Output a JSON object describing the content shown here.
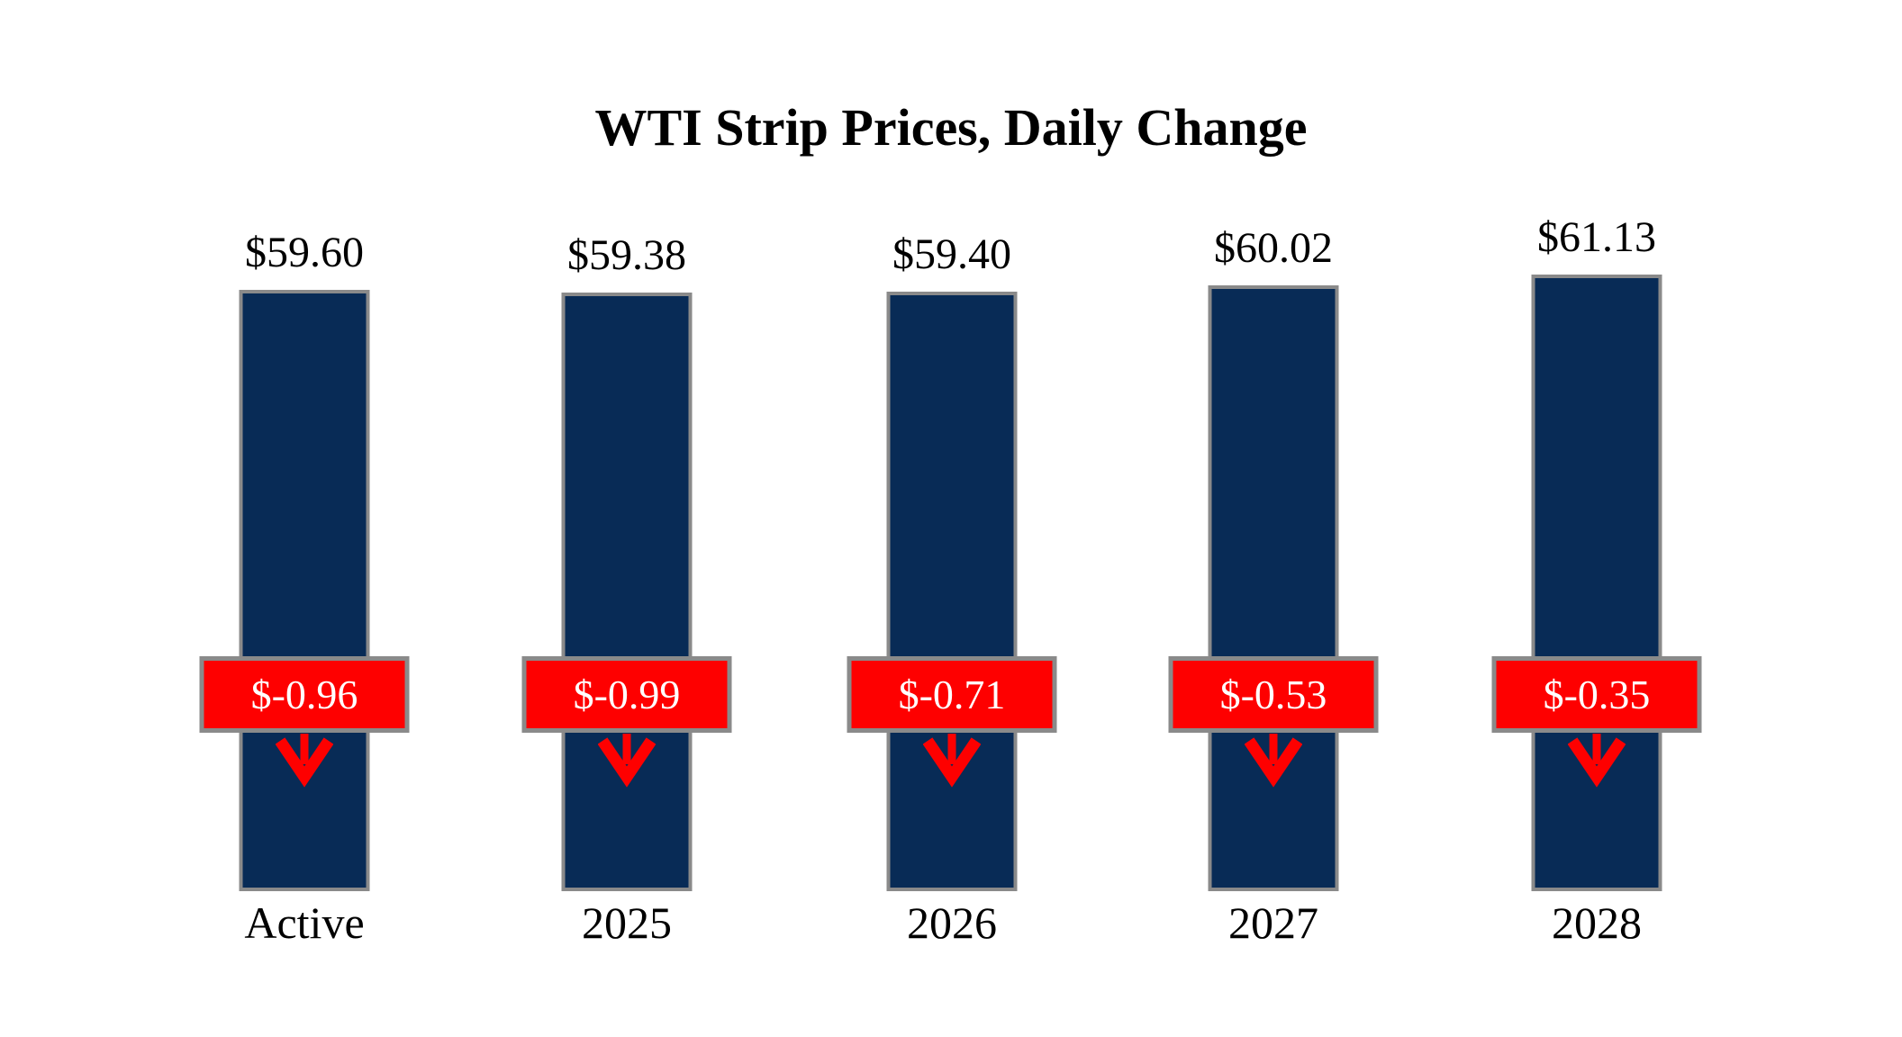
{
  "chart_data": {
    "type": "bar",
    "title": "WTI Strip Prices, Daily Change",
    "categories": [
      "Active",
      "2025",
      "2026",
      "2027",
      "2028"
    ],
    "series": [
      {
        "name": "Strip Price",
        "values": [
          59.6,
          59.38,
          59.4,
          60.02,
          61.13
        ]
      },
      {
        "name": "Daily Change",
        "values": [
          -0.96,
          -0.99,
          -0.71,
          -0.53,
          -0.35
        ]
      }
    ],
    "points": [
      {
        "category": "Active",
        "price": 59.6,
        "price_label": "$59.60",
        "change": -0.96,
        "change_label": "$-0.96"
      },
      {
        "category": "2025",
        "price": 59.38,
        "price_label": "$59.38",
        "change": -0.99,
        "change_label": "$-0.99"
      },
      {
        "category": "2026",
        "price": 59.4,
        "price_label": "$59.40",
        "change": -0.71,
        "change_label": "$-0.71"
      },
      {
        "category": "2027",
        "price": 60.02,
        "price_label": "$60.02",
        "change": -0.53,
        "change_label": "$-0.53"
      },
      {
        "category": "2028",
        "price": 61.13,
        "price_label": "$61.13",
        "change": -0.35,
        "change_label": "$-0.35"
      }
    ],
    "axis": {
      "y_min": 0,
      "y_axis_visible": false,
      "x_axis_visible": false
    },
    "grid": false,
    "legend_position": "none",
    "colors": {
      "bar_fill": "#082B56",
      "bar_border": "#8A8A8A",
      "badge_fill": "#FE0000",
      "badge_border": "#8A8A8A",
      "badge_text": "#FFFFFF",
      "arrow": "#FE0000",
      "label_text": "#000000",
      "background": "#FFFFFF"
    },
    "icons": {
      "direction_icon": "down-arrow-icon"
    }
  }
}
